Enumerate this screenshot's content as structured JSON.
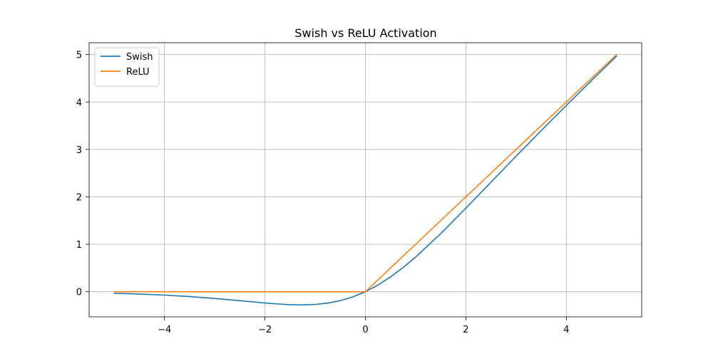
{
  "chart_data": {
    "type": "line",
    "title": "Swish vs ReLU Activation",
    "xlabel": "",
    "ylabel": "",
    "xlim": [
      -5.5,
      5.5
    ],
    "ylim": [
      -0.53,
      5.25
    ],
    "x_ticks": [
      -4,
      -2,
      0,
      2,
      4
    ],
    "x_tick_labels": [
      "−4",
      "−2",
      "0",
      "2",
      "4"
    ],
    "y_ticks": [
      0,
      1,
      2,
      3,
      4,
      5
    ],
    "y_tick_labels": [
      "0",
      "1",
      "2",
      "3",
      "4",
      "5"
    ],
    "grid": true,
    "legend_position": "top-left",
    "series": [
      {
        "name": "Swish",
        "color": "#1f77b4",
        "x": [
          -5,
          -4.5,
          -4,
          -3.5,
          -3,
          -2.5,
          -2,
          -1.75,
          -1.5,
          -1.25,
          -1,
          -0.75,
          -0.5,
          -0.25,
          0,
          0.25,
          0.5,
          0.75,
          1,
          1.5,
          2,
          2.5,
          3,
          3.5,
          4,
          4.5,
          5
        ],
        "y": [
          -0.033,
          -0.049,
          -0.072,
          -0.103,
          -0.142,
          -0.189,
          -0.238,
          -0.258,
          -0.274,
          -0.278,
          -0.269,
          -0.24,
          -0.189,
          -0.109,
          0,
          0.141,
          0.311,
          0.51,
          0.731,
          1.226,
          1.762,
          2.311,
          2.858,
          3.397,
          3.928,
          4.451,
          4.967
        ]
      },
      {
        "name": "ReLU",
        "color": "#ff7f0e",
        "x": [
          -5,
          0,
          5
        ],
        "y": [
          0,
          0,
          5
        ]
      }
    ]
  }
}
